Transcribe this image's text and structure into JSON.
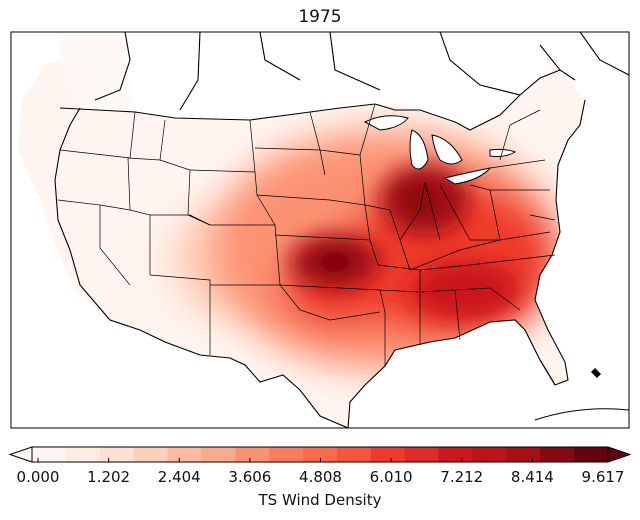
{
  "title": "1975",
  "colorbar": {
    "label": "TS Wind Density",
    "ticks": [
      "0.000",
      "1.202",
      "2.404",
      "3.606",
      "4.808",
      "6.010",
      "7.212",
      "8.414",
      "9.617"
    ],
    "min": 0.0,
    "max": 9.617,
    "extend": "both",
    "colors": [
      "#fff5f0",
      "#feebe2",
      "#fee0d2",
      "#fdd0bc",
      "#fcbba1",
      "#fca98c",
      "#fc9272",
      "#fb7c5c",
      "#fb6a4a",
      "#f5553d",
      "#ef3b2c",
      "#de2d26",
      "#cb181d",
      "#b81419",
      "#a50f15",
      "#850a11",
      "#67000d"
    ]
  },
  "map": {
    "region": "Contiguous United States",
    "field": "TS Wind Density",
    "land_color": "#fff5f0",
    "border_color": "#000000"
  }
}
